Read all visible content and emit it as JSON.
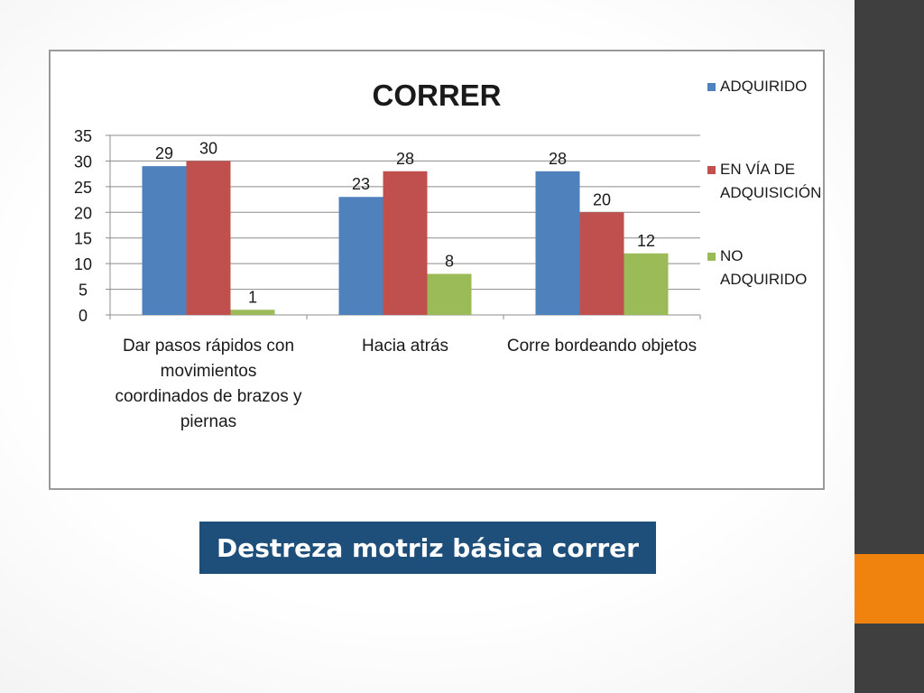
{
  "colors": {
    "sidebar": "#3f3f3f",
    "accent": "#f0830e",
    "caption_bg": "#1e4e7a"
  },
  "caption": "Destreza motriz básica correr",
  "chart_data": {
    "type": "bar",
    "title": "CORRER",
    "categories": [
      [
        "Dar pasos rápidos con",
        "movimientos",
        "coordinados de brazos y",
        "piernas"
      ],
      [
        "Hacia atrás"
      ],
      [
        "Corre bordeando objetos"
      ]
    ],
    "series": [
      {
        "name": [
          "ADQUIRIDO"
        ],
        "color": "#4f81bd",
        "values": [
          29,
          23,
          28
        ]
      },
      {
        "name": [
          "EN VÍA DE",
          "ADQUISICIÓN"
        ],
        "color": "#c0504d",
        "values": [
          30,
          28,
          20
        ]
      },
      {
        "name": [
          "NO",
          "ADQUIRIDO"
        ],
        "color": "#9bbb59",
        "values": [
          1,
          8,
          12
        ]
      }
    ],
    "ylim": [
      0,
      35
    ],
    "yticks": [
      0,
      5,
      10,
      15,
      20,
      25,
      30,
      35
    ],
    "grid": true,
    "legend": "right",
    "data_labels": true
  }
}
